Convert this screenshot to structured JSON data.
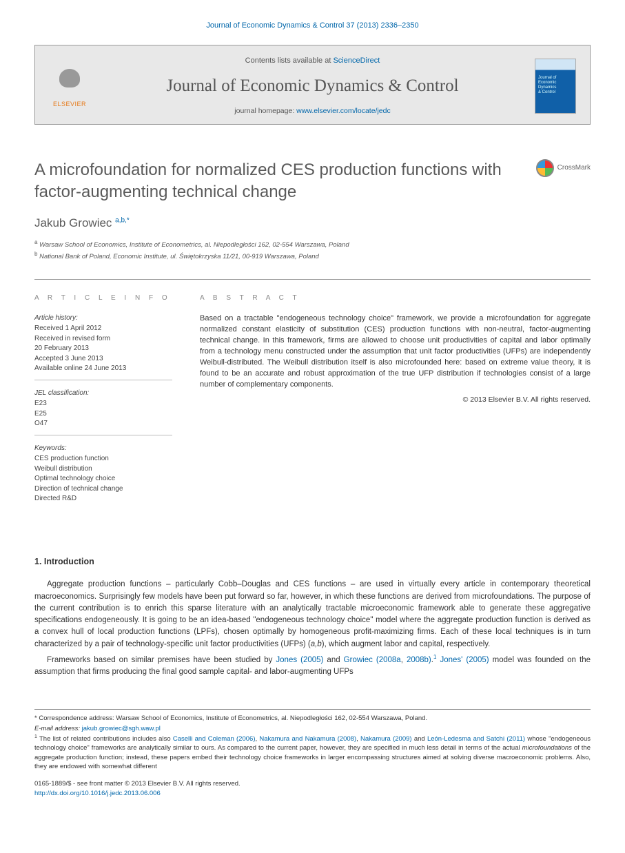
{
  "header": {
    "citation": "Journal of Economic Dynamics & Control 37 (2013) 2336–2350"
  },
  "banner": {
    "publisher": "ELSEVIER",
    "contents_prefix": "Contents lists available at ",
    "contents_link": "ScienceDirect",
    "journal": "Journal of Economic Dynamics & Control",
    "homepage_prefix": "journal homepage: ",
    "homepage_url": "www.elsevier.com/locate/jedc"
  },
  "title": "A microfoundation for normalized CES production functions with factor-augmenting technical change",
  "crossmark": "CrossMark",
  "authors": {
    "name": "Jakub Growiec",
    "marks": "a,b,*"
  },
  "affiliations": {
    "a": "Warsaw School of Economics, Institute of Econometrics, al. Niepodległości 162, 02-554 Warszawa, Poland",
    "b": "National Bank of Poland, Economic Institute, ul. Świętokrzyska 11/21, 00-919 Warszawa, Poland"
  },
  "info": {
    "heading": "A R T I C L E   I N F O",
    "history_label": "Article history:",
    "history": {
      "received": "Received 1 April 2012",
      "revised1": "Received in revised form",
      "revised2": "20 February 2013",
      "accepted": "Accepted 3 June 2013",
      "online": "Available online 24 June 2013"
    },
    "jel_label": "JEL classification:",
    "jel": [
      "E23",
      "E25",
      "O47"
    ],
    "keywords_label": "Keywords:",
    "keywords": [
      "CES production function",
      "Weibull distribution",
      "Optimal technology choice",
      "Direction of technical change",
      "Directed R&D"
    ]
  },
  "abstract": {
    "heading": "A B S T R A C T",
    "text": "Based on a tractable \"endogeneous technology choice\" framework, we provide a microfoundation for aggregate normalized constant elasticity of substitution (CES) production functions with non-neutral, factor-augmenting technical change. In this framework, firms are allowed to choose unit productivities of capital and labor optimally from a technology menu constructed under the assumption that unit factor productivities (UFPs) are independently Weibull-distributed. The Weibull distribution itself is also microfounded here: based on extreme value theory, it is found to be an accurate and robust approximation of the true UFP distribution if technologies consist of a large number of complementary components.",
    "copyright": "© 2013 Elsevier B.V. All rights reserved."
  },
  "section": {
    "heading": "1. Introduction",
    "p1_a": "Aggregate production functions – particularly Cobb–Douglas and CES functions – are used in virtually every article in contemporary theoretical macroeconomics. Surprisingly few models have been put forward so far, however, in which these functions are derived from microfoundations. The purpose of the current contribution is to enrich this sparse literature with an analytically tractable microeconomic framework able to generate these aggregative specifications endogeneously. It is going to be an idea-based \"endogeneous technology choice\" model where the aggregate production function is derived as a convex hull of local production functions (LPFs), chosen optimally by homogeneous profit-maximizing firms. Each of these local techniques is in turn characterized by a pair of technology-specific unit factor productivities (UFPs) (",
    "p1_ab": "a,b",
    "p1_b": "), which augment labor and capital, respectively.",
    "p2_a": "Frameworks based on similar premises have been studied by ",
    "p2_link1": "Jones (2005)",
    "p2_b": " and ",
    "p2_link2": "Growiec (2008a",
    "p2_c": ", ",
    "p2_link3": "2008b)",
    "p2_d": ".",
    "p2_sup": "1",
    "p2_e": " ",
    "p2_link4": "Jones' (2005)",
    "p2_f": " model was founded on the assumption that firms producing the final good sample capital- and labor-augmenting UFPs"
  },
  "footnotes": {
    "corr_label": "* Correspondence address: Warsaw School of Economics, Institute of Econometrics, al. Niepodległości 162, 02-554 Warszawa, Poland.",
    "email_label": "E-mail address: ",
    "email": "jakub.growiec@sgh.waw.pl",
    "fn1_sup": "1",
    "fn1_a": " The list of related contributions includes also ",
    "fn1_link1": "Caselli and Coleman (2006)",
    "fn1_b": ", ",
    "fn1_link2": "Nakamura and Nakamura (2008)",
    "fn1_c": ", ",
    "fn1_link3": "Nakamura (2009)",
    "fn1_d": " and ",
    "fn1_link4": "León-Ledesma and Satchi (2011)",
    "fn1_e": " whose \"endogeneous technology choice\" frameworks are analytically similar to ours. As compared to the current paper, however, they are specified in much less detail in terms of the actual ",
    "fn1_em": "microfoundations",
    "fn1_f": " of the aggregate production function; instead, these papers embed their technology choice frameworks in larger encompassing structures aimed at solving diverse macroeconomic problems. Also, they are endowed with somewhat different"
  },
  "footer": {
    "line1": "0165-1889/$ - see front matter © 2013 Elsevier B.V. All rights reserved.",
    "doi_url": "http://dx.doi.org/10.1016/j.jedc.2013.06.006"
  }
}
